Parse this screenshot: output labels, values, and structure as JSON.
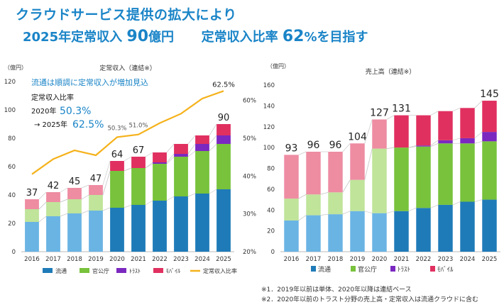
{
  "header": {
    "title_line1": "クラウドサービス提供の拡大により",
    "title_line2_a": "2025年定常収入",
    "title_line2_b": "90",
    "title_line2_c": "億円",
    "title_line2_d": "定常収入比率",
    "title_line2_e": "62",
    "title_line2_f": "%を目指す"
  },
  "colors": {
    "ryutsu_dark": "#1f7bb8",
    "ryutsu_light": "#6ab4e4",
    "kanko_dark": "#78c23c",
    "kanko_light": "#bfe49a",
    "trust_dark": "#7b28c0",
    "trust_light": "#b98de0",
    "mobile_dark": "#e03060",
    "mobile_light": "#ee8ca2",
    "ratio_line": "#f5b21b",
    "title": "#1a84c7"
  },
  "chart_data": [
    {
      "type": "bar",
      "stacked": true,
      "title": "定常収入（連結※）",
      "unit_label": "（億円）",
      "categories": [
        "2016",
        "2017",
        "2018",
        "2019",
        "2020",
        "2021",
        "2022",
        "2023",
        "2024",
        "2025"
      ],
      "series": [
        {
          "name": "流通",
          "values": [
            21,
            25,
            27,
            29,
            31,
            33,
            36,
            39,
            41,
            44
          ]
        },
        {
          "name": "官公庁",
          "values": [
            9,
            10,
            10,
            11,
            26,
            26,
            26,
            28,
            30,
            32
          ]
        },
        {
          "name": "トラスト",
          "values": [
            0,
            0,
            0,
            0,
            0,
            0,
            1,
            2,
            5,
            6
          ]
        },
        {
          "name": "モバイル",
          "values": [
            7,
            7,
            8,
            7,
            7,
            8,
            7,
            7,
            6,
            8
          ]
        }
      ],
      "totals": [
        37,
        42,
        45,
        47,
        64,
        67,
        70,
        76,
        82,
        90
      ],
      "total_labels_shown": [
        "37",
        "42",
        "45",
        "47",
        "64",
        "67",
        "",
        "",
        "",
        "90"
      ],
      "ratio_series": {
        "name": "定常収入比率",
        "values": [
          40.5,
          44.5,
          46.8,
          45.5,
          50.3,
          51.0,
          54.0,
          56.5,
          60.5,
          62.5
        ]
      },
      "ratio_labels": [
        {
          "index": 4,
          "text": "50.3%"
        },
        {
          "index": 5,
          "text": "51.0%"
        },
        {
          "index": 9,
          "text": "62.5%"
        }
      ],
      "ylim": [
        0,
        120
      ],
      "yticks": [
        "0",
        "20",
        "40",
        "60",
        "80",
        "100",
        "120"
      ],
      "y2lim": [
        20,
        65
      ],
      "y2ticks": [
        "20%",
        "30%",
        "40%",
        "50%",
        "60%"
      ],
      "legend": [
        "流通",
        "官公庁",
        "ﾄﾗｽﾄ",
        "ﾓﾊﾞｲﾙ",
        "定常収入比率"
      ],
      "annotation": {
        "headline": "流通は順調に定常収入が増加見込",
        "label": "定常収入比率",
        "line1_prefix": "2020年",
        "line1_value": "50.3%",
        "line2_prefix": "→ 2025年",
        "line2_value": "62.5%"
      }
    },
    {
      "type": "bar",
      "stacked": true,
      "title": "売上高（連結※）",
      "unit_label": "（億円）",
      "categories": [
        "2016",
        "2017",
        "2018",
        "2019",
        "2020",
        "2021",
        "2022",
        "2023",
        "2024",
        "2025"
      ],
      "series": [
        {
          "name": "流通",
          "values": [
            30,
            35,
            36,
            39,
            37,
            39,
            42,
            45,
            48,
            50
          ]
        },
        {
          "name": "官公庁",
          "values": [
            21,
            20,
            21,
            30,
            62,
            61,
            59,
            59,
            56,
            56
          ]
        },
        {
          "name": "トラスト",
          "values": [
            0,
            0,
            0,
            0,
            0,
            0,
            1,
            3,
            5,
            9
          ]
        },
        {
          "name": "モバイル",
          "values": [
            42,
            41,
            39,
            35,
            28,
            31,
            29,
            28,
            29,
            30
          ]
        }
      ],
      "totals": [
        93,
        96,
        96,
        104,
        127,
        131,
        131,
        135,
        138,
        145
      ],
      "total_labels_shown": [
        "93",
        "96",
        "96",
        "104",
        "127",
        "131",
        "",
        "",
        "",
        "145"
      ],
      "light_until_index": 4,
      "ylim": [
        0,
        160
      ],
      "yticks": [
        "0",
        "20",
        "40",
        "60",
        "80",
        "100",
        "120",
        "140",
        "160"
      ],
      "legend": [
        "流通",
        "官公庁",
        "ﾄﾗｽﾄ",
        "ﾓﾊﾞｲﾙ"
      ]
    }
  ],
  "notes": [
    "※1．2019年以前は単体、2020年以降は連結ベース",
    "※2．2020年以前のトラスト分野の売上高・定常収入は流通クラウドに含む"
  ]
}
